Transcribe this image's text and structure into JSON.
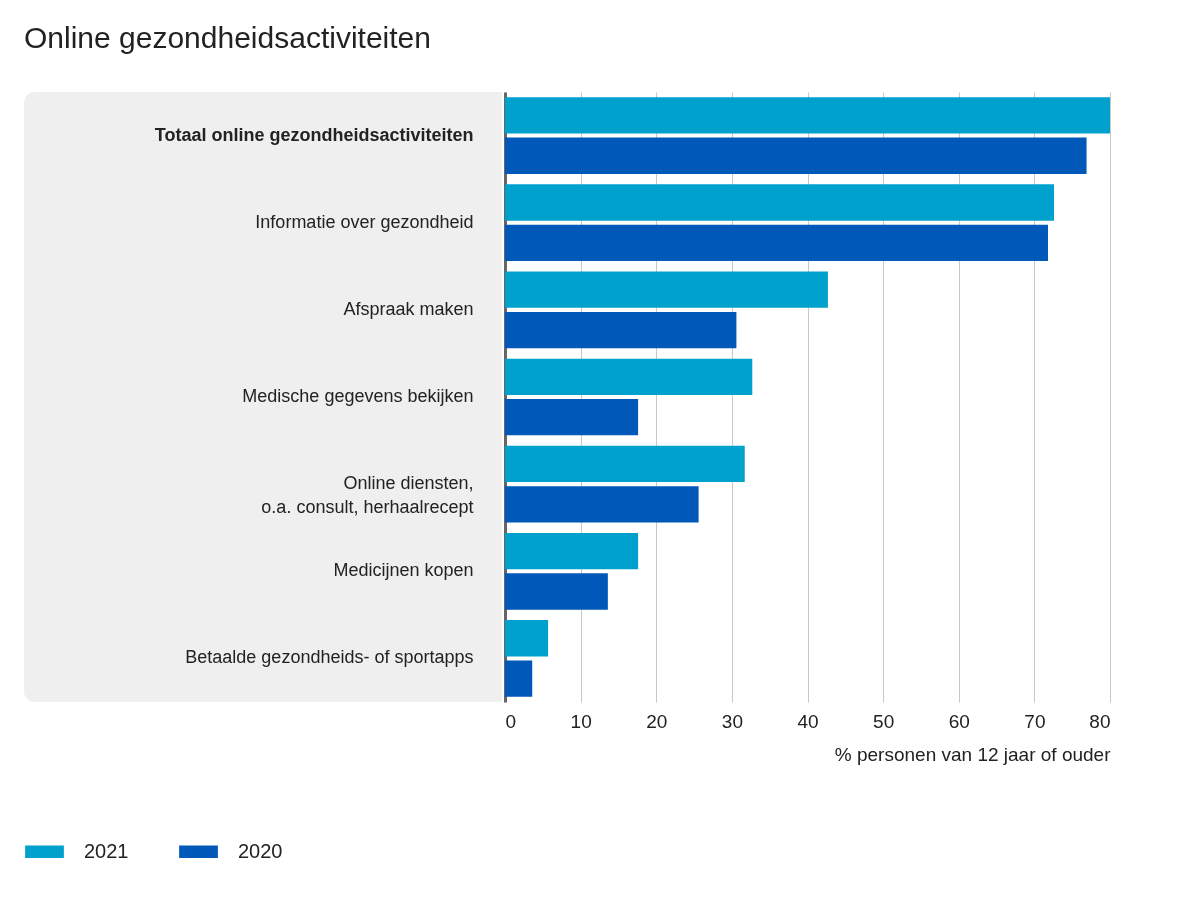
{
  "chart_data": {
    "type": "bar",
    "orientation": "horizontal",
    "title": "Online gezondheidsactiviteiten",
    "xlabel": "% personen van 12 jaar of ouder",
    "categories": [
      "Totaal online gezondheidsactiviteiten",
      "Informatie over gezondheid",
      "Afspraak maken",
      "Medische gegevens bekijken",
      "Online diensten,\no.a. consult, herhaalrecept",
      "Medicijnen kopen",
      "Betaalde gezondheids- of sportapps"
    ],
    "series": [
      {
        "name": "2021",
        "color": "#00a1cd",
        "values": [
          80,
          72.6,
          42.7,
          32.7,
          31.7,
          17.6,
          5.7
        ]
      },
      {
        "name": "2020",
        "color": "#0058b8",
        "values": [
          76.9,
          71.8,
          30.6,
          17.6,
          25.6,
          13.6,
          3.6
        ]
      }
    ],
    "xlim": [
      0,
      80
    ],
    "xticks": [
      0,
      10,
      20,
      30,
      40,
      50,
      60,
      70,
      80
    ],
    "grid": "x",
    "legend": "bottom left"
  }
}
